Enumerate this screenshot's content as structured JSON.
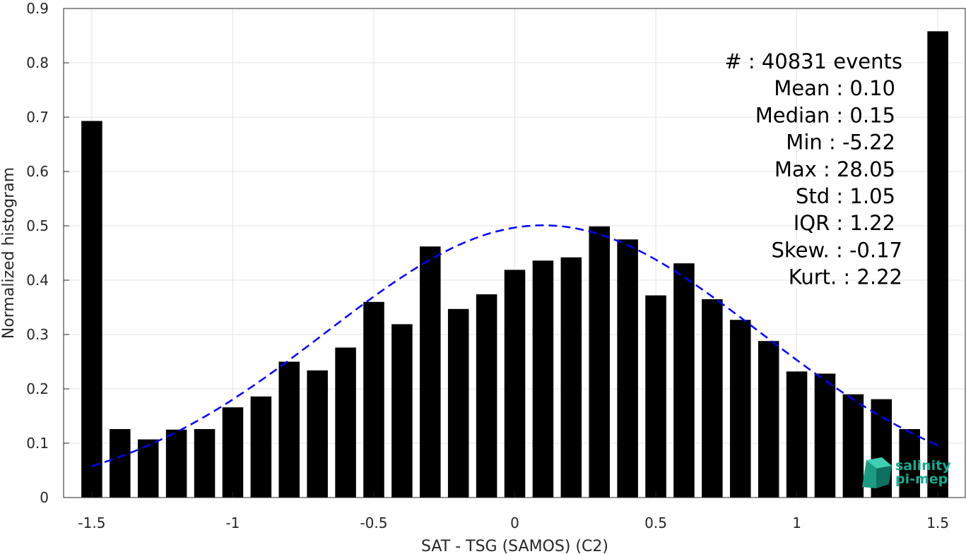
{
  "chart_data": {
    "type": "bar",
    "xlabel": "SAT - TSG (SAMOS) (C2)",
    "ylabel": "Normalized histogram",
    "xlim": [
      -1.6,
      1.6
    ],
    "ylim": [
      0,
      0.9
    ],
    "grid": true,
    "x_ticks": [
      "-1.5",
      "-1",
      "-0.5",
      "0",
      "0.5",
      "1",
      "1.5"
    ],
    "y_ticks": [
      "0",
      "0.1",
      "0.2",
      "0.3",
      "0.4",
      "0.5",
      "0.6",
      "0.7",
      "0.8",
      "0.9"
    ],
    "bar_color": "#000000",
    "bars": [
      {
        "x": -1.5,
        "value": 0.693
      },
      {
        "x": -1.4,
        "value": 0.126
      },
      {
        "x": -1.3,
        "value": 0.107
      },
      {
        "x": -1.2,
        "value": 0.125
      },
      {
        "x": -1.1,
        "value": 0.126
      },
      {
        "x": -1.0,
        "value": 0.166
      },
      {
        "x": -0.9,
        "value": 0.186
      },
      {
        "x": -0.8,
        "value": 0.25
      },
      {
        "x": -0.7,
        "value": 0.234
      },
      {
        "x": -0.6,
        "value": 0.276
      },
      {
        "x": -0.5,
        "value": 0.36
      },
      {
        "x": -0.4,
        "value": 0.319
      },
      {
        "x": -0.3,
        "value": 0.462
      },
      {
        "x": -0.2,
        "value": 0.347
      },
      {
        "x": -0.1,
        "value": 0.374
      },
      {
        "x": 0.0,
        "value": 0.419
      },
      {
        "x": 0.1,
        "value": 0.436
      },
      {
        "x": 0.2,
        "value": 0.442
      },
      {
        "x": 0.3,
        "value": 0.499
      },
      {
        "x": 0.4,
        "value": 0.475
      },
      {
        "x": 0.5,
        "value": 0.372
      },
      {
        "x": 0.6,
        "value": 0.431
      },
      {
        "x": 0.7,
        "value": 0.365
      },
      {
        "x": 0.8,
        "value": 0.327
      },
      {
        "x": 0.9,
        "value": 0.288
      },
      {
        "x": 1.0,
        "value": 0.232
      },
      {
        "x": 1.1,
        "value": 0.228
      },
      {
        "x": 1.2,
        "value": 0.19
      },
      {
        "x": 1.3,
        "value": 0.181
      },
      {
        "x": 1.4,
        "value": 0.126
      },
      {
        "x": 1.5,
        "value": 0.858
      }
    ],
    "fit_curve": {
      "style": "dashed",
      "color": "#0000ff",
      "shape": "gaussian",
      "mean": 0.1,
      "peak": 0.501,
      "sigma": 0.77,
      "x_range": [
        -1.5,
        1.5
      ]
    },
    "stats": [
      "#  : 40831 events",
      "Mean : 0.10",
      "Median : 0.15",
      "Min : -5.22",
      "Max : 28.05",
      "Std : 1.05",
      "IQR : 1.22",
      "Skew. : -0.17",
      "Kurt. : 2.22"
    ]
  },
  "logo": {
    "line1": "salinity",
    "line2": "pi-mep",
    "color": "#1aa88f"
  }
}
